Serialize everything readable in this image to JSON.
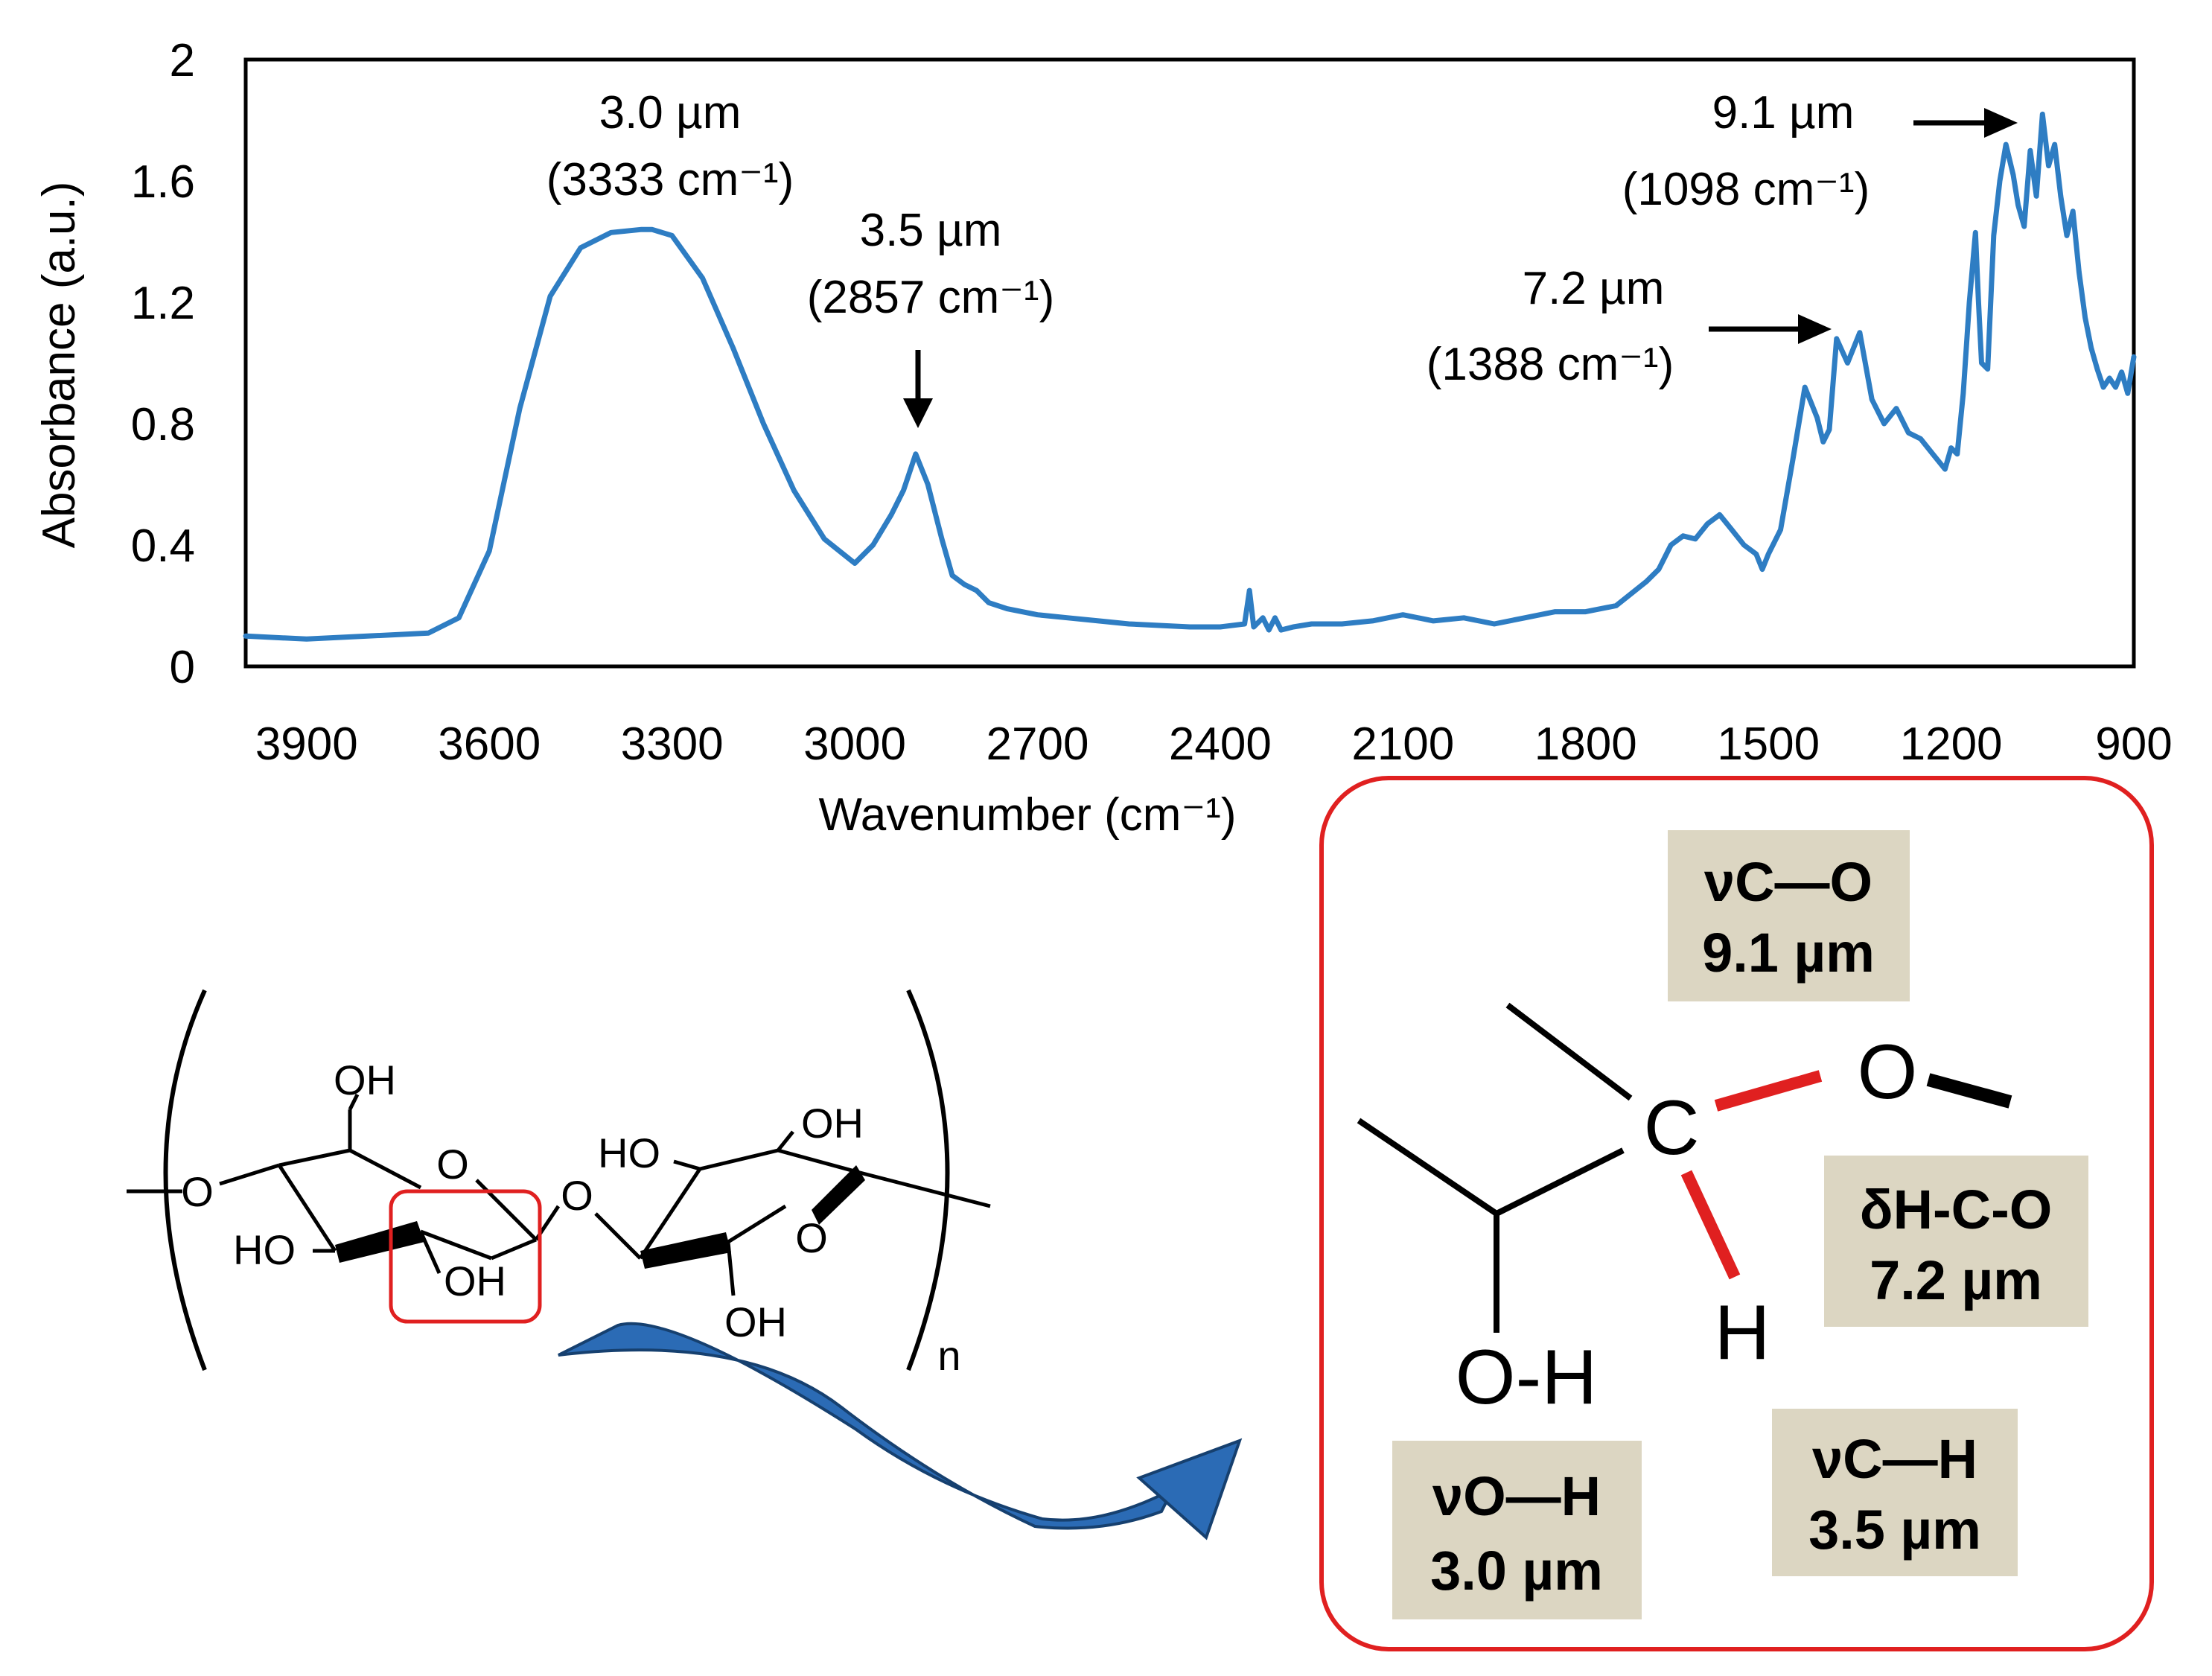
{
  "chart_data": {
    "type": "line",
    "xlabel": "Wavenumber (cm⁻¹)",
    "ylabel": "Absorbance (a.u.)",
    "xlim": [
      4000,
      900
    ],
    "x_reversed": true,
    "ylim": [
      0,
      2
    ],
    "x_ticks": [
      "3900",
      "3600",
      "3300",
      "3000",
      "2700",
      "2400",
      "2100",
      "1800",
      "1500",
      "1200",
      "900"
    ],
    "y_ticks": [
      "0",
      "0.4",
      "0.8",
      "1.2",
      "1.6",
      "2"
    ],
    "grid": false,
    "line_color": "#2e7dc3",
    "series": [
      {
        "x": [
          4000,
          3900,
          3800,
          3700,
          3650,
          3600,
          3550,
          3500,
          3450,
          3400,
          3350,
          3333,
          3300,
          3250,
          3200,
          3150,
          3100,
          3050,
          3000,
          2970,
          2940,
          2920,
          2900,
          2880,
          2857,
          2840,
          2820,
          2800,
          2780,
          2750,
          2700,
          2650,
          2600,
          2550,
          2500,
          2450,
          2400,
          2360,
          2352,
          2345,
          2330,
          2320,
          2310,
          2300,
          2280,
          2250,
          2200,
          2150,
          2100,
          2050,
          2000,
          1950,
          1900,
          1850,
          1800,
          1750,
          1700,
          1680,
          1660,
          1640,
          1620,
          1600,
          1580,
          1560,
          1540,
          1520,
          1510,
          1500,
          1480,
          1460,
          1440,
          1420,
          1410,
          1400,
          1388,
          1370,
          1350,
          1330,
          1310,
          1290,
          1270,
          1250,
          1230,
          1210,
          1200,
          1190,
          1180,
          1170,
          1160,
          1155,
          1150,
          1140,
          1130,
          1120,
          1110,
          1098,
          1090,
          1080,
          1070,
          1060,
          1050,
          1040,
          1030,
          1020,
          1010,
          1000,
          990,
          980,
          970,
          960,
          950,
          940,
          930,
          920,
          910,
          900
        ],
        "y": [
          0.1,
          0.09,
          0.1,
          0.11,
          0.16,
          0.38,
          0.85,
          1.22,
          1.38,
          1.43,
          1.44,
          1.44,
          1.42,
          1.28,
          1.05,
          0.8,
          0.58,
          0.42,
          0.34,
          0.4,
          0.5,
          0.58,
          0.7,
          0.6,
          0.42,
          0.3,
          0.27,
          0.25,
          0.21,
          0.19,
          0.17,
          0.16,
          0.15,
          0.14,
          0.135,
          0.13,
          0.13,
          0.14,
          0.25,
          0.13,
          0.16,
          0.12,
          0.16,
          0.12,
          0.13,
          0.14,
          0.14,
          0.15,
          0.17,
          0.15,
          0.16,
          0.14,
          0.16,
          0.18,
          0.18,
          0.2,
          0.28,
          0.32,
          0.4,
          0.43,
          0.42,
          0.47,
          0.5,
          0.45,
          0.4,
          0.37,
          0.32,
          0.37,
          0.45,
          0.68,
          0.92,
          0.82,
          0.74,
          0.78,
          1.08,
          1.0,
          1.1,
          0.88,
          0.8,
          0.85,
          0.77,
          0.75,
          0.7,
          0.65,
          0.72,
          0.7,
          0.9,
          1.2,
          1.43,
          1.2,
          1.0,
          0.98,
          1.42,
          1.6,
          1.72,
          1.62,
          1.52,
          1.45,
          1.7,
          1.55,
          1.82,
          1.65,
          1.72,
          1.55,
          1.42,
          1.5,
          1.3,
          1.15,
          1.05,
          0.98,
          0.92,
          0.95,
          0.92,
          0.97,
          0.9,
          1.02
        ]
      }
    ],
    "annotations": [
      {
        "id": "peak-oh",
        "line1": "3.0 µm",
        "line2": "(3333 cm⁻¹)"
      },
      {
        "id": "peak-ch",
        "line1": "3.5 µm",
        "line2": "(2857 cm⁻¹)"
      },
      {
        "id": "peak-hco",
        "line1": "7.2 µm",
        "line2": "(1388 cm⁻¹)"
      },
      {
        "id": "peak-co",
        "line1": "9.1 µm",
        "line2": "(1098 cm⁻¹)"
      }
    ]
  },
  "structure": {
    "labels": {
      "oh_top_left": "OH",
      "oh_bottom_left": "OH",
      "oh_top_right": "OH",
      "oh_bottom_right": "OH",
      "ho_left": "HO",
      "ho_right": "HO",
      "o_ring_left": "O",
      "o_ring_right": "O",
      "o_link": "O",
      "o_end": "O",
      "subscript_n": "n"
    },
    "highlight_color": "#e02020",
    "arrow_color": "#2563a8"
  },
  "callout": {
    "atoms": {
      "c": "C",
      "o": "O",
      "h": "H",
      "oh": "O-H"
    },
    "boxes": {
      "co": {
        "line1": "νC—O",
        "line2": "9.1 µm"
      },
      "hco": {
        "line1": "δH-C-O",
        "line2": "7.2 µm"
      },
      "ch": {
        "line1": "νC—H",
        "line2": "3.5 µm"
      },
      "oh": {
        "line1": "νO—H",
        "line2": "3.0 µm"
      }
    },
    "box_color": "#dcd6c2",
    "border_color": "#e02020",
    "bond_highlight_color": "#e02020"
  }
}
